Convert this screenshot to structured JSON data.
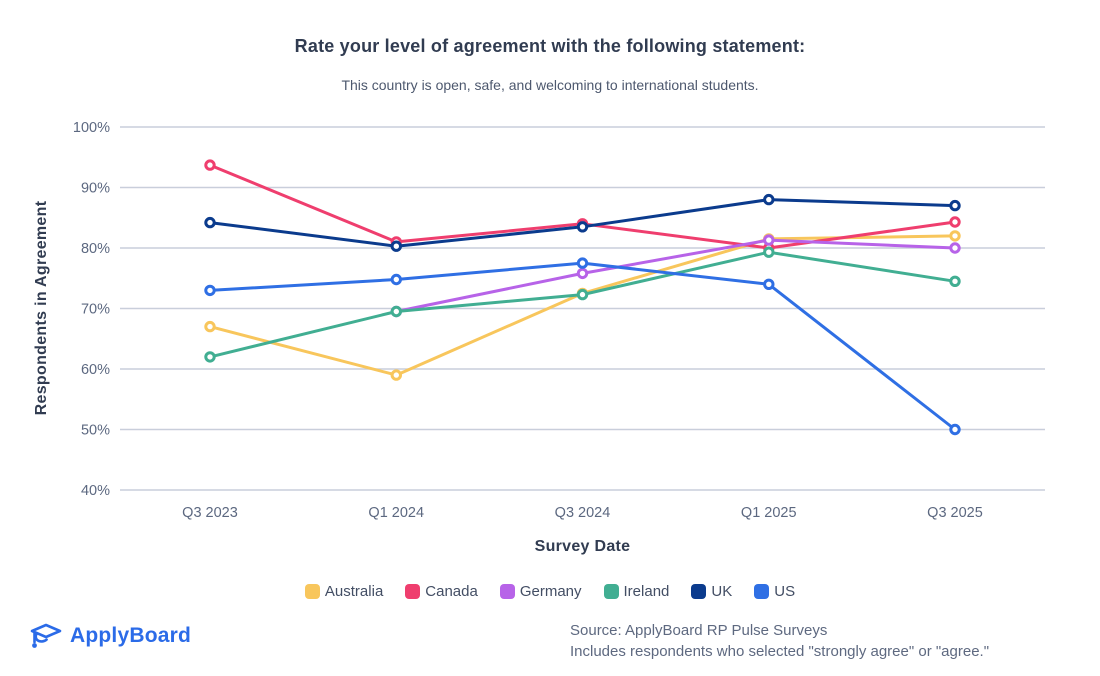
{
  "page": {
    "title": "Rate your level of agreement with the following statement:",
    "subtitle": "This country is open, safe, and welcoming to international students."
  },
  "chart_data": {
    "type": "line",
    "x": [
      "Q3 2023",
      "Q1 2024",
      "Q3 2024",
      "Q1 2025",
      "Q3 2025"
    ],
    "series": [
      {
        "name": "Australia",
        "color": "#F8C65C",
        "values": [
          67,
          59,
          72.5,
          81.5,
          82
        ]
      },
      {
        "name": "Canada",
        "color": "#EF3E6E",
        "values": [
          93.7,
          81,
          84,
          80,
          84.3
        ]
      },
      {
        "name": "Germany",
        "color": "#B763E8",
        "values": [
          null,
          69.5,
          75.8,
          81.3,
          80
        ]
      },
      {
        "name": "Ireland",
        "color": "#41AE92",
        "values": [
          62,
          69.5,
          72.3,
          79.3,
          74.5
        ]
      },
      {
        "name": "UK",
        "color": "#0B3B8D",
        "values": [
          84.2,
          80.3,
          83.5,
          88,
          87
        ]
      },
      {
        "name": "US",
        "color": "#2F6FE4",
        "values": [
          73,
          74.8,
          77.5,
          74,
          50
        ]
      }
    ],
    "xlabel": "Survey Date",
    "ylabel": "Respondents in Agreement",
    "ylim": [
      40,
      100
    ],
    "ytick_step": 10,
    "ytick_suffix": "%",
    "grid": "horizontal",
    "legend_position": "bottom"
  },
  "footer": {
    "logo_text": "ApplyBoard",
    "logo_color": "#2B6BE8",
    "source_line1": "Source: ApplyBoard RP Pulse Surveys",
    "source_line2": "Includes respondents who selected \"strongly agree\" or \"agree.\""
  }
}
